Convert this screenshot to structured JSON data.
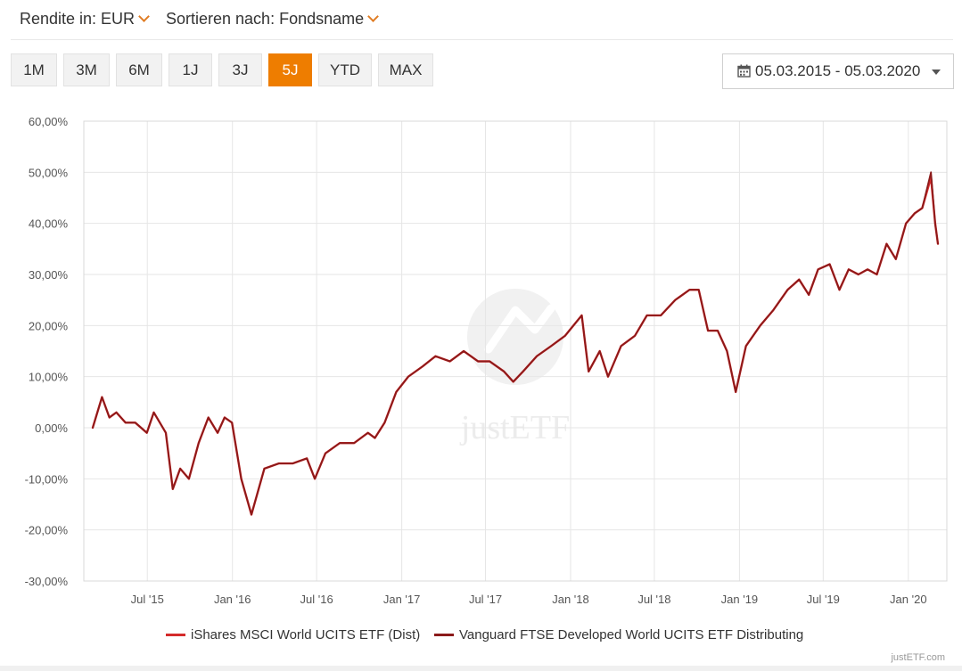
{
  "controls": {
    "return_label": "Rendite in: EUR",
    "sort_label": "Sortieren nach: Fondsname",
    "periods": [
      "1M",
      "3M",
      "6M",
      "1J",
      "3J",
      "5J",
      "YTD",
      "MAX"
    ],
    "active_period": "5J",
    "date_range": "05.03.2015 - 05.03.2020"
  },
  "credit": "justETF.com",
  "watermark": "justETF",
  "chart_data": {
    "type": "line",
    "ylim": [
      -30,
      60
    ],
    "yticks": [
      60,
      50,
      40,
      30,
      20,
      10,
      0,
      -10,
      -20,
      -30
    ],
    "ytick_labels": [
      "60,00%",
      "50,00%",
      "40,00%",
      "30,00%",
      "20,00%",
      "10,00%",
      "0,00%",
      "-10,00%",
      "-20,00%",
      "-30,00%"
    ],
    "xlim": [
      "2015-03-05",
      "2020-03-05"
    ],
    "xticks": [
      "2015-07-01",
      "2016-01-01",
      "2016-07-01",
      "2017-01-01",
      "2017-07-01",
      "2018-01-01",
      "2018-07-01",
      "2019-01-01",
      "2019-07-01",
      "2020-01-01"
    ],
    "xtick_labels": [
      "Jul '15",
      "Jan '16",
      "Jul '16",
      "Jan '17",
      "Jul '17",
      "Jan '18",
      "Jul '18",
      "Jan '19",
      "Jul '19",
      "Jan '20"
    ],
    "grid": true,
    "legend_position": "bottom-center",
    "series": [
      {
        "name": "iShares MSCI World UCITS ETF (Dist)",
        "color": "#d42b2b",
        "x": [
          "2015-03-05",
          "2015-03-25",
          "2015-04-10",
          "2015-04-25",
          "2015-05-15",
          "2015-06-05",
          "2015-06-30",
          "2015-07-15",
          "2015-08-10",
          "2015-08-25",
          "2015-09-10",
          "2015-09-29",
          "2015-10-20",
          "2015-11-10",
          "2015-11-30",
          "2015-12-15",
          "2015-12-31",
          "2016-01-20",
          "2016-02-11",
          "2016-03-10",
          "2016-04-10",
          "2016-05-10",
          "2016-06-10",
          "2016-06-27",
          "2016-07-20",
          "2016-08-20",
          "2016-09-20",
          "2016-10-20",
          "2016-11-04",
          "2016-11-25",
          "2016-12-20",
          "2017-01-15",
          "2017-02-15",
          "2017-03-15",
          "2017-04-15",
          "2017-05-15",
          "2017-06-15",
          "2017-07-10",
          "2017-08-10",
          "2017-08-30",
          "2017-09-20",
          "2017-10-20",
          "2017-11-20",
          "2017-12-20",
          "2018-01-25",
          "2018-02-09",
          "2018-03-05",
          "2018-03-23",
          "2018-04-20",
          "2018-05-20",
          "2018-06-15",
          "2018-07-15",
          "2018-08-15",
          "2018-09-15",
          "2018-10-05",
          "2018-10-25",
          "2018-11-15",
          "2018-12-05",
          "2018-12-24",
          "2019-01-15",
          "2019-02-15",
          "2019-03-15",
          "2019-04-15",
          "2019-05-10",
          "2019-05-31",
          "2019-06-20",
          "2019-07-15",
          "2019-08-05",
          "2019-08-25",
          "2019-09-15",
          "2019-10-05",
          "2019-10-25",
          "2019-11-15",
          "2019-12-05",
          "2019-12-27",
          "2020-01-15",
          "2020-01-31",
          "2020-02-19",
          "2020-02-28",
          "2020-03-05"
        ],
        "values": [
          0,
          6,
          2,
          3,
          1,
          1,
          -1,
          3,
          -1,
          -12,
          -8,
          -10,
          -3,
          2,
          -1,
          2,
          1,
          -10,
          -17,
          -8,
          -7,
          -7,
          -6,
          -10,
          -5,
          -3,
          -3,
          -1,
          -2,
          1,
          7,
          10,
          12,
          14,
          13,
          15,
          13,
          13,
          11,
          9,
          11,
          14,
          16,
          18,
          22,
          11,
          15,
          10,
          16,
          18,
          22,
          22,
          25,
          27,
          27,
          19,
          19,
          15,
          7,
          16,
          20,
          23,
          27,
          29,
          26,
          31,
          32,
          27,
          31,
          30,
          31,
          30,
          36,
          33,
          40,
          42,
          43,
          49,
          40,
          36
        ]
      },
      {
        "name": "Vanguard FTSE Developed World UCITS ETF Distributing",
        "color": "#8b1a1a",
        "x": [
          "2015-03-05",
          "2015-03-25",
          "2015-04-10",
          "2015-04-25",
          "2015-05-15",
          "2015-06-05",
          "2015-06-30",
          "2015-07-15",
          "2015-08-10",
          "2015-08-25",
          "2015-09-10",
          "2015-09-29",
          "2015-10-20",
          "2015-11-10",
          "2015-11-30",
          "2015-12-15",
          "2015-12-31",
          "2016-01-20",
          "2016-02-11",
          "2016-03-10",
          "2016-04-10",
          "2016-05-10",
          "2016-06-10",
          "2016-06-27",
          "2016-07-20",
          "2016-08-20",
          "2016-09-20",
          "2016-10-20",
          "2016-11-04",
          "2016-11-25",
          "2016-12-20",
          "2017-01-15",
          "2017-02-15",
          "2017-03-15",
          "2017-04-15",
          "2017-05-15",
          "2017-06-15",
          "2017-07-10",
          "2017-08-10",
          "2017-08-30",
          "2017-09-20",
          "2017-10-20",
          "2017-11-20",
          "2017-12-20",
          "2018-01-25",
          "2018-02-09",
          "2018-03-05",
          "2018-03-23",
          "2018-04-20",
          "2018-05-20",
          "2018-06-15",
          "2018-07-15",
          "2018-08-15",
          "2018-09-15",
          "2018-10-05",
          "2018-10-25",
          "2018-11-15",
          "2018-12-05",
          "2018-12-24",
          "2019-01-15",
          "2019-02-15",
          "2019-03-15",
          "2019-04-15",
          "2019-05-10",
          "2019-05-31",
          "2019-06-20",
          "2019-07-15",
          "2019-08-05",
          "2019-08-25",
          "2019-09-15",
          "2019-10-05",
          "2019-10-25",
          "2019-11-15",
          "2019-12-05",
          "2019-12-27",
          "2020-01-15",
          "2020-01-31",
          "2020-02-19",
          "2020-02-28",
          "2020-03-05"
        ],
        "values": [
          0,
          6,
          2,
          3,
          1,
          1,
          -1,
          3,
          -1,
          -12,
          -8,
          -10,
          -3,
          2,
          -1,
          2,
          1,
          -10,
          -17,
          -8,
          -7,
          -7,
          -6,
          -10,
          -5,
          -3,
          -3,
          -1,
          -2,
          1,
          7,
          10,
          12,
          14,
          13,
          15,
          13,
          13,
          11,
          9,
          11,
          14,
          16,
          18,
          22,
          11,
          15,
          10,
          16,
          18,
          22,
          22,
          25,
          27,
          27,
          19,
          19,
          15,
          7,
          16,
          20,
          23,
          27,
          29,
          26,
          31,
          32,
          27,
          31,
          30,
          31,
          30,
          36,
          33,
          40,
          42,
          43,
          50,
          40,
          36
        ]
      }
    ]
  }
}
